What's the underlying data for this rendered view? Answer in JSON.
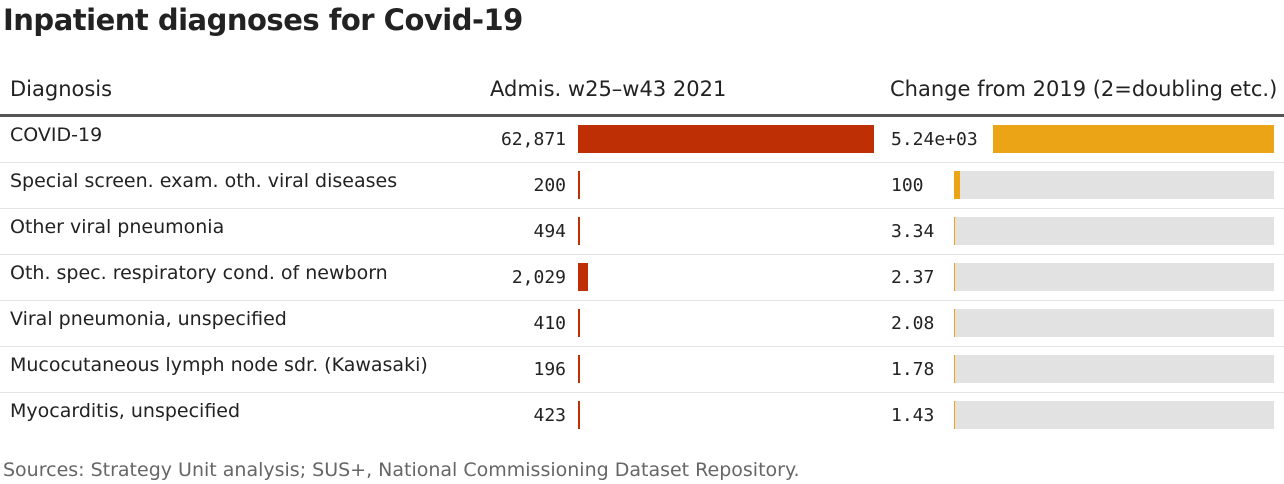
{
  "title": "Inpatient diagnoses for Covid-19",
  "source": "Sources: Strategy Unit analysis; SUS+, National Commissioning Dataset Repository.",
  "colors": {
    "admissions_bar": "#bf2f06",
    "change_bar": "#eba415",
    "track": "#e2e2e2"
  },
  "chart_data": {
    "type": "table",
    "columns": [
      "Diagnosis",
      "Admis. w25–w43 2021",
      "Change from 2019 (2=doubling etc.)"
    ],
    "rows": [
      {
        "diagnosis": "COVID-19",
        "admissions": 62871,
        "admissions_label": "62,871",
        "change": 5240,
        "change_label": "5.24e+03"
      },
      {
        "diagnosis": "Special screen. exam. oth. viral diseases",
        "admissions": 200,
        "admissions_label": "200",
        "change": 100,
        "change_label": "100"
      },
      {
        "diagnosis": "Other viral pneumonia",
        "admissions": 494,
        "admissions_label": "494",
        "change": 3.34,
        "change_label": "3.34"
      },
      {
        "diagnosis": "Oth. spec. respiratory cond. of newborn",
        "admissions": 2029,
        "admissions_label": "2,029",
        "change": 2.37,
        "change_label": "2.37"
      },
      {
        "diagnosis": "Viral pneumonia, unspecified",
        "admissions": 410,
        "admissions_label": "410",
        "change": 2.08,
        "change_label": "2.08"
      },
      {
        "diagnosis": "Mucocutaneous lymph node sdr. (Kawasaki)",
        "admissions": 196,
        "admissions_label": "196",
        "change": 1.78,
        "change_label": "1.78"
      },
      {
        "diagnosis": "Myocarditis, unspecified",
        "admissions": 423,
        "admissions_label": "423",
        "change": 1.43,
        "change_label": "1.43"
      }
    ]
  }
}
